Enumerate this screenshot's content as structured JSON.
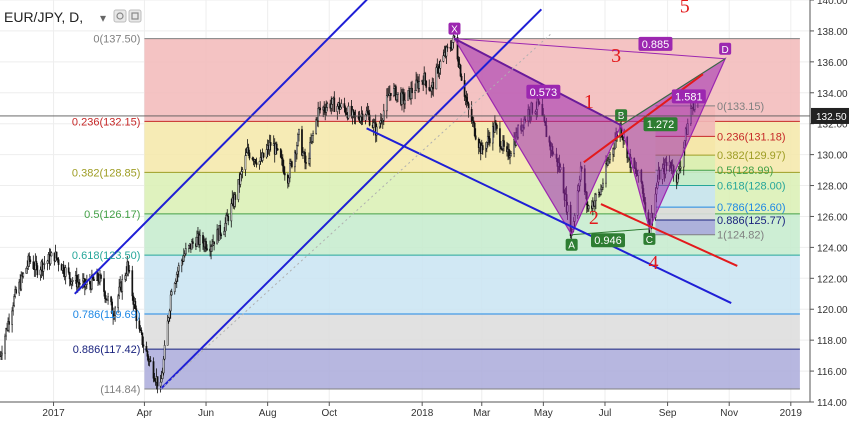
{
  "header": {
    "symbol_title": "EUR/JPY, D,",
    "dropdown_glyph": "▾",
    "toolbar_icons": [
      "settings-icon",
      "visibility-icon"
    ]
  },
  "chart_data": {
    "type": "candlestick",
    "symbol": "EUR/JPY",
    "timeframe": "D",
    "ylim": [
      114,
      140
    ],
    "xlim": [
      "2016-11-09",
      "2019-01-20"
    ],
    "y_ticks": [
      114,
      116,
      118,
      120,
      122,
      124,
      126,
      128,
      130,
      132,
      134,
      136,
      138,
      140
    ],
    "y_tick_labels": [
      "114.00",
      "116.00",
      "118.00",
      "120.00",
      "122.00",
      "124.00",
      "126.00",
      "128.00",
      "130.00",
      "132.00",
      "134.00",
      "136.00",
      "138.00",
      "140.00"
    ],
    "x_ticks": [
      {
        "date": "2017-01-01",
        "label": "2017"
      },
      {
        "date": "2017-04-01",
        "label": "Apr"
      },
      {
        "date": "2017-06-01",
        "label": "Jun"
      },
      {
        "date": "2017-08-01",
        "label": "Aug"
      },
      {
        "date": "2017-10-01",
        "label": "Oct"
      },
      {
        "date": "2018-01-01",
        "label": "2018"
      },
      {
        "date": "2018-03-01",
        "label": "Mar"
      },
      {
        "date": "2018-05-01",
        "label": "May"
      },
      {
        "date": "2018-07-01",
        "label": "Jul"
      },
      {
        "date": "2018-09-01",
        "label": "Sep"
      },
      {
        "date": "2018-11-01",
        "label": "Nov"
      },
      {
        "date": "2019-01-01",
        "label": "2019"
      }
    ],
    "last_price": 132.5,
    "last_price_label": "132.50",
    "price_path": [
      [
        "2016-11-09",
        117.0
      ],
      [
        "2016-11-22",
        120.5
      ],
      [
        "2016-12-08",
        123.2
      ],
      [
        "2016-12-15",
        122.6
      ],
      [
        "2017-01-02",
        123.5
      ],
      [
        "2017-01-18",
        122.0
      ],
      [
        "2017-02-01",
        121.5
      ],
      [
        "2017-02-15",
        122.0
      ],
      [
        "2017-03-01",
        119.8
      ],
      [
        "2017-03-15",
        122.8
      ],
      [
        "2017-03-27",
        118.5
      ],
      [
        "2017-04-05",
        116.8
      ],
      [
        "2017-04-17",
        114.84
      ],
      [
        "2017-04-28",
        121.5
      ],
      [
        "2017-05-10",
        123.5
      ],
      [
        "2017-05-22",
        124.5
      ],
      [
        "2017-06-05",
        124.2
      ],
      [
        "2017-06-20",
        125.5
      ],
      [
        "2017-07-01",
        127.5
      ],
      [
        "2017-07-12",
        130.2
      ],
      [
        "2017-07-25",
        129.5
      ],
      [
        "2017-08-05",
        130.8
      ],
      [
        "2017-08-21",
        128.6
      ],
      [
        "2017-09-01",
        131.2
      ],
      [
        "2017-09-08",
        129.2
      ],
      [
        "2017-09-20",
        132.8
      ],
      [
        "2017-10-02",
        133.3
      ],
      [
        "2017-10-16",
        133.0
      ],
      [
        "2017-10-26",
        132.3
      ],
      [
        "2017-11-06",
        132.8
      ],
      [
        "2017-11-17",
        131.5
      ],
      [
        "2017-12-01",
        134.2
      ],
      [
        "2017-12-14",
        133.5
      ],
      [
        "2018-01-02",
        135.0
      ],
      [
        "2018-01-10",
        134.2
      ],
      [
        "2018-01-18",
        135.8
      ],
      [
        "2018-02-02",
        137.5
      ],
      [
        "2018-02-15",
        133.0
      ],
      [
        "2018-03-01",
        130.2
      ],
      [
        "2018-03-14",
        131.8
      ],
      [
        "2018-03-26",
        129.8
      ],
      [
        "2018-04-06",
        131.5
      ],
      [
        "2018-04-16",
        132.8
      ],
      [
        "2018-04-26",
        133.2
      ],
      [
        "2018-05-08",
        130.5
      ],
      [
        "2018-05-18",
        129.0
      ],
      [
        "2018-05-29",
        124.82
      ],
      [
        "2018-06-07",
        129.2
      ],
      [
        "2018-06-14",
        126.5
      ],
      [
        "2018-06-26",
        127.5
      ],
      [
        "2018-07-06",
        130.0
      ],
      [
        "2018-07-16",
        131.9
      ],
      [
        "2018-07-26",
        129.5
      ],
      [
        "2018-08-06",
        128.2
      ],
      [
        "2018-08-14",
        125.2
      ],
      [
        "2018-08-23",
        128.6
      ],
      [
        "2018-09-03",
        129.5
      ],
      [
        "2018-09-11",
        128.5
      ],
      [
        "2018-09-24",
        133.0
      ],
      [
        "2018-10-01",
        133.8
      ]
    ],
    "volatility_seed": 7,
    "xabcd_pattern": {
      "points": [
        {
          "label": "X",
          "date": "2018-02-02",
          "price": 137.5
        },
        {
          "label": "A",
          "date": "2018-05-29",
          "price": 124.82
        },
        {
          "label": "B",
          "date": "2018-07-17",
          "price": 131.9
        },
        {
          "label": "C",
          "date": "2018-08-14",
          "price": 125.2
        },
        {
          "label": "D",
          "date": "2018-10-28",
          "price": 136.2
        }
      ],
      "ratios": [
        {
          "text": "0.573",
          "date": "2018-05-01",
          "price": 134.0
        },
        {
          "text": "0.885",
          "date": "2018-08-20",
          "price": 137.1
        },
        {
          "text": "1.272",
          "date": "2018-08-25",
          "price": 131.9
        },
        {
          "text": "1.581",
          "date": "2018-09-22",
          "price": 133.7
        },
        {
          "text": "0.946",
          "date": "2018-07-04",
          "price": 124.4
        }
      ],
      "fill_color": "#9c27b0",
      "bc_cd_fill_color": "#2e7d32",
      "label_box_xd": "#9c27b0",
      "label_box_abc": "#2e7d32"
    },
    "fib_retracement_main": {
      "start": {
        "date": "2017-04-17",
        "price": 114.84
      },
      "end": {
        "date": "2018-02-02",
        "price": 137.5
      },
      "x_from": "2017-04-01",
      "x_to": "2019-01-10",
      "levels": [
        {
          "ratio": 0,
          "price": 137.5,
          "label": "0(137.50)",
          "color": "#808080",
          "band": "#f2b8b8"
        },
        {
          "ratio": 0.236,
          "price": 132.15,
          "label": "0.236(132.15)",
          "color": "#c62828",
          "band": "#f5e7a8"
        },
        {
          "ratio": 0.382,
          "price": 128.85,
          "label": "0.382(128.85)",
          "color": "#9e9d24",
          "band": "#d9f0b3"
        },
        {
          "ratio": 0.5,
          "price": 126.17,
          "label": "0.5(126.17)",
          "color": "#43a047",
          "band": "#c4ebcc"
        },
        {
          "ratio": 0.618,
          "price": 123.5,
          "label": "0.618(123.50)",
          "color": "#26a69a",
          "band": "#c9e4f2"
        },
        {
          "ratio": 0.786,
          "price": 119.69,
          "label": "0.786(119.69)",
          "color": "#1e88e5",
          "band": "#dcdcdc"
        },
        {
          "ratio": 0.886,
          "price": 117.42,
          "label": "0.886(117.42)",
          "color": "#1a237e",
          "band": "#aaaadb"
        },
        {
          "ratio": 1,
          "price": 114.84,
          "label": "(114.84)",
          "color": "#808080",
          "band": null
        }
      ]
    },
    "fib_retracement_small": {
      "x_from": "2018-08-20",
      "x_to": "2018-10-18",
      "levels": [
        {
          "price": 133.15,
          "label": "0(133.15)",
          "color": "#808080",
          "band": "#f2b8b8"
        },
        {
          "price": 131.18,
          "label": "0.236(131.18)",
          "color": "#c62828",
          "band": "#f5e7a8"
        },
        {
          "price": 129.97,
          "label": "0.382(129.97)",
          "color": "#9e9d24",
          "band": "#d9f0b3"
        },
        {
          "price": 128.99,
          "label": "0.5(128.99)",
          "color": "#43a047",
          "band": "#c4ebcc"
        },
        {
          "price": 128.0,
          "label": "0.618(128.00)",
          "color": "#26a69a",
          "band": "#c9e4f2"
        },
        {
          "price": 126.6,
          "label": "0.786(126.60)",
          "color": "#1e88e5",
          "band": "#dcdcdc"
        },
        {
          "price": 125.77,
          "label": "0.886(125.77)",
          "color": "#1a237e",
          "band": "#aaaadb"
        },
        {
          "price": 124.82,
          "label": "1(124.82)",
          "color": "#808080",
          "band": null
        }
      ]
    },
    "trend_lines": [
      {
        "name": "channel-upper",
        "color": "#1f1fd6",
        "from": {
          "date": "2017-01-22",
          "price": 121.0
        },
        "to": {
          "date": "2017-11-16",
          "price": 140.6
        }
      },
      {
        "name": "channel-lower",
        "color": "#1f1fd6",
        "from": {
          "date": "2017-04-17",
          "price": 114.84
        },
        "to": {
          "date": "2018-04-29",
          "price": 139.4
        }
      },
      {
        "name": "downtrend-line",
        "color": "#1f1fd6",
        "from": {
          "date": "2017-11-07",
          "price": 131.7
        },
        "to": {
          "date": "2018-11-03",
          "price": 120.4
        }
      },
      {
        "name": "wave-upper-line",
        "color": "#e31a1c",
        "from": {
          "date": "2018-06-10",
          "price": 129.5
        },
        "to": {
          "date": "2018-10-06",
          "price": 135.2
        }
      },
      {
        "name": "wave-lower-line",
        "color": "#e31a1c",
        "from": {
          "date": "2018-06-27",
          "price": 126.8
        },
        "to": {
          "date": "2018-11-09",
          "price": 122.8
        }
      },
      {
        "name": "dotted-diagonal",
        "color": "#b0b0b0",
        "dashed": true,
        "from": {
          "date": "2017-04-17",
          "price": 114.84
        },
        "to": {
          "date": "2018-05-10",
          "price": 137.9
        }
      }
    ],
    "wave_labels": [
      {
        "text": "1",
        "date": "2018-06-15",
        "price": 133.0
      },
      {
        "text": "2",
        "date": "2018-06-20",
        "price": 125.5
      },
      {
        "text": "3",
        "date": "2018-07-12",
        "price": 136.0
      },
      {
        "text": "4",
        "date": "2018-08-18",
        "price": 122.6
      },
      {
        "text": "5",
        "date": "2018-09-18",
        "price": 139.2
      }
    ]
  }
}
